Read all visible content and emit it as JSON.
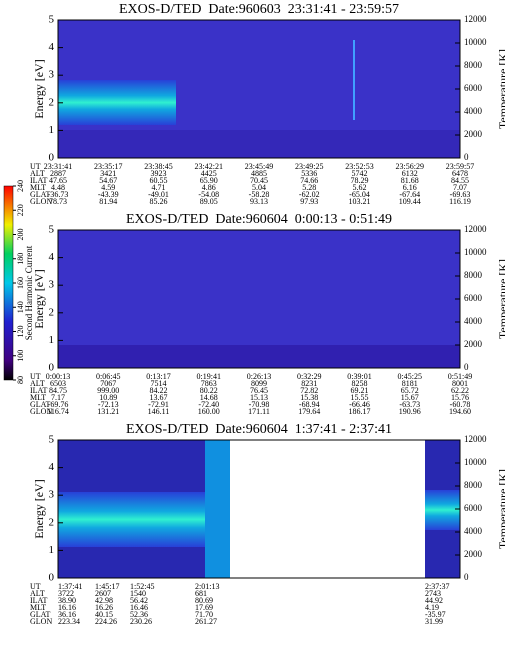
{
  "chart_data": [
    {
      "type": "spectrogram",
      "title": "EXOS-D/TED  Date:960603  23:31:41 - 23:59:57",
      "ylabel": "Energy [eV]",
      "y2label": "Temperature [K]",
      "ylim": [
        0,
        5
      ],
      "yticks": [
        0,
        1,
        2,
        3,
        4,
        5
      ],
      "y2lim": [
        0,
        12000
      ],
      "y2ticks": [
        0,
        2000,
        4000,
        6000,
        8000,
        10000,
        12000
      ],
      "ephemeris": [
        {
          "label": "UT",
          "values": [
            "23:31:41",
            "23:35:17",
            "23:38:45",
            "23:42:21",
            "23:45:49",
            "23:49:25",
            "23:52:53",
            "23:56:29",
            "23:59:57"
          ]
        },
        {
          "label": "ALT",
          "values": [
            "2887",
            "3421",
            "3923",
            "4425",
            "4885",
            "5336",
            "5742",
            "6132",
            "6478"
          ]
        },
        {
          "label": "ILAT",
          "values": [
            "47.65",
            "54.67",
            "60.55",
            "65.90",
            "70.45",
            "74.66",
            "78.29",
            "81.68",
            "84.55"
          ]
        },
        {
          "label": "MLT",
          "values": [
            "4.48",
            "4.59",
            "4.71",
            "4.86",
            "5.04",
            "5.28",
            "5.62",
            "6.16",
            "7.07"
          ]
        },
        {
          "label": "GLAT",
          "values": [
            "-36.73",
            "-43.39",
            "-49.01",
            "-54.08",
            "-58.28",
            "-62.02",
            "-65.04",
            "-67.64",
            "-69.63"
          ]
        },
        {
          "label": "GLON",
          "values": [
            "78.73",
            "81.94",
            "85.26",
            "89.05",
            "93.13",
            "97.93",
            "103.21",
            "109.44",
            "116.19"
          ]
        }
      ]
    },
    {
      "type": "spectrogram",
      "title": "EXOS-D/TED  Date:960604  0:00:13 - 0:51:49",
      "ylabel": "Energy [eV]",
      "y2label": "Temperature [K]",
      "ylim": [
        0,
        5
      ],
      "yticks": [
        0,
        1,
        2,
        3,
        4,
        5
      ],
      "y2lim": [
        0,
        12000
      ],
      "y2ticks": [
        0,
        2000,
        4000,
        6000,
        8000,
        10000,
        12000
      ],
      "ephemeris": [
        {
          "label": "UT",
          "values": [
            "0:00:13",
            "0:06:45",
            "0:13:17",
            "0:19:41",
            "0:26:13",
            "0:32:29",
            "0:39:01",
            "0:45:25",
            "0:51:49"
          ]
        },
        {
          "label": "ALT",
          "values": [
            "6503",
            "7067",
            "7514",
            "7863",
            "8099",
            "8231",
            "8258",
            "8181",
            "8001"
          ]
        },
        {
          "label": "ILAT",
          "values": [
            "84.75",
            "999.00",
            "84.22",
            "80.22",
            "76.45",
            "72.82",
            "69.21",
            "65.72",
            "62.22"
          ]
        },
        {
          "label": "MLT",
          "values": [
            "7.17",
            "10.89",
            "13.67",
            "14.68",
            "15.13",
            "15.38",
            "15.55",
            "15.67",
            "15.76"
          ]
        },
        {
          "label": "GLAT",
          "values": [
            "-69.76",
            "-72.13",
            "-72.91",
            "-72.40",
            "-70.98",
            "-68.94",
            "-66.46",
            "-63.73",
            "-60.78"
          ]
        },
        {
          "label": "GLON",
          "values": [
            "116.74",
            "131.21",
            "146.11",
            "160.00",
            "171.11",
            "179.64",
            "186.17",
            "190.96",
            "194.60"
          ]
        }
      ]
    },
    {
      "type": "spectrogram",
      "title": "EXOS-D/TED  Date:960604  1:37:41 - 2:37:41",
      "ylabel": "Energy [eV]",
      "y2label": "Temperature [K]",
      "ylim": [
        0,
        5
      ],
      "yticks": [
        0,
        1,
        2,
        3,
        4,
        5
      ],
      "y2lim": [
        0,
        12000
      ],
      "y2ticks": [
        0,
        2000,
        4000,
        6000,
        8000,
        10000,
        12000
      ],
      "ephemeris": [
        {
          "label": "UT",
          "values": [
            "1:37:41",
            "1:45:17",
            "1:52:45",
            "2:01:13",
            "2:37:37"
          ]
        },
        {
          "label": "ALT",
          "values": [
            "3722",
            "2607",
            "1540",
            "681",
            "2743"
          ]
        },
        {
          "label": "ILAT",
          "values": [
            "38.90",
            "42.98",
            "56.42",
            "80.69",
            "44.92"
          ]
        },
        {
          "label": "MLT",
          "values": [
            "16.16",
            "16.26",
            "16.46",
            "17.69",
            "4.19"
          ]
        },
        {
          "label": "GLAT",
          "values": [
            "36.16",
            "40.15",
            "52.36",
            "71.70",
            "-35.97"
          ]
        },
        {
          "label": "GLON",
          "values": [
            "223.34",
            "224.26",
            "230.26",
            "261.27",
            "31.99"
          ]
        }
      ]
    }
  ],
  "colorbar": {
    "label": "Second Harmonic Current",
    "lim": [
      80,
      240
    ],
    "ticks": [
      80,
      100,
      120,
      140,
      160,
      180,
      200,
      220,
      240
    ]
  }
}
